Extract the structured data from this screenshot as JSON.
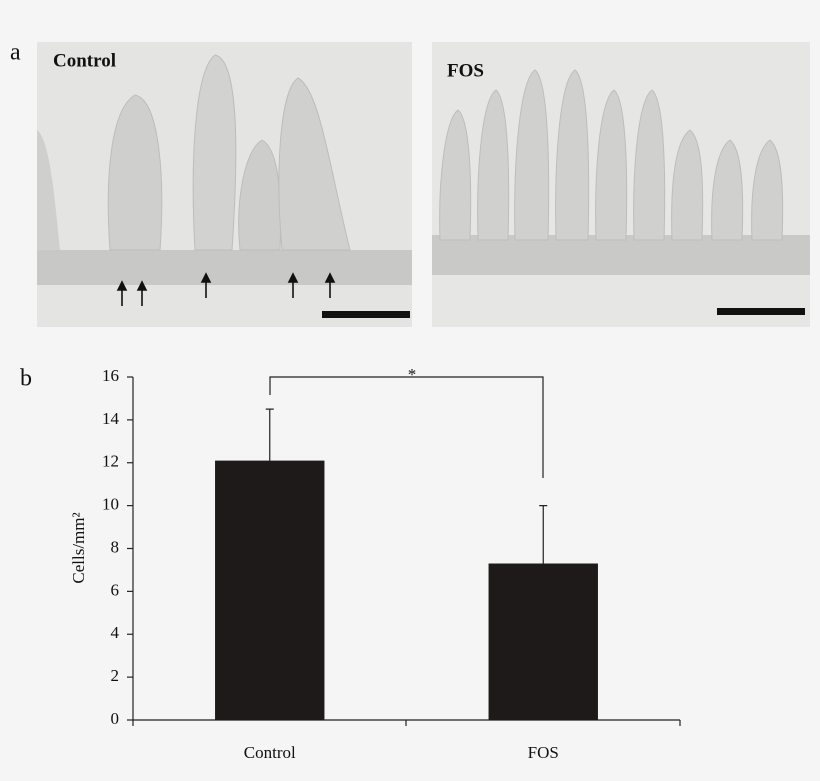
{
  "panel_labels": [
    "a",
    "b"
  ],
  "micrographs": [
    {
      "label": "Control"
    },
    {
      "label": "FOS"
    }
  ],
  "chart_data": {
    "type": "bar",
    "ylabel": "Cells/mm²",
    "categories": [
      "Control",
      "FOS"
    ],
    "values": [
      12.1,
      7.3
    ],
    "errors": [
      2.4,
      2.7
    ],
    "color": "#1e1a1a",
    "ylim": [
      0,
      16
    ],
    "yticks": [
      0,
      2,
      4,
      6,
      8,
      10,
      12,
      14,
      16
    ],
    "significance": "*"
  }
}
